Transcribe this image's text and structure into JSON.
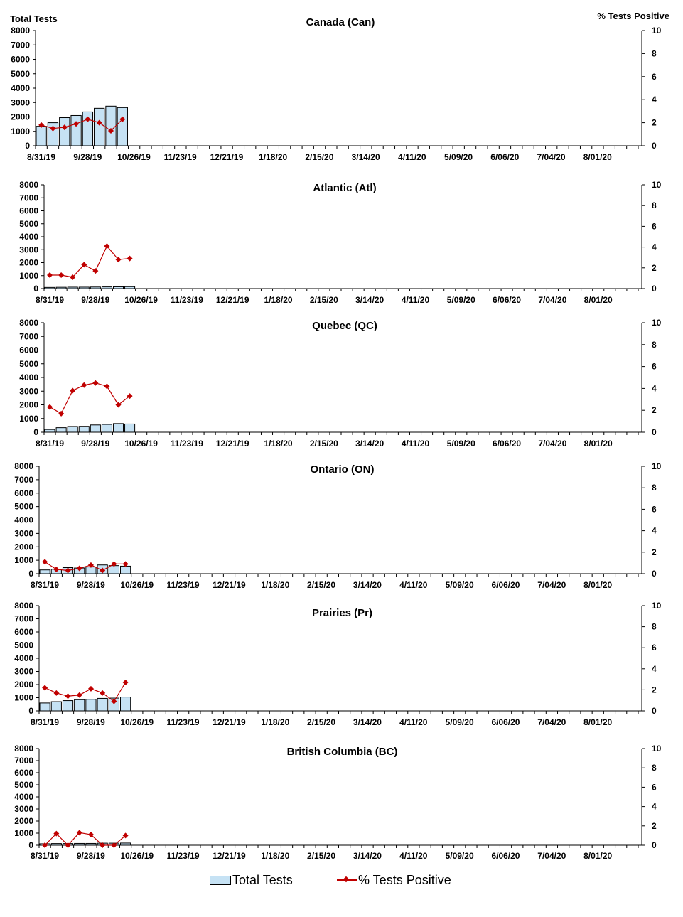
{
  "left_axis_title": "Total Tests",
  "right_axis_title": "% Tests Positive",
  "legend": {
    "bars_label": "Total Tests",
    "line_label": "% Tests Positive"
  },
  "colors": {
    "bar_fill": "#c6e2f4",
    "bar_stroke": "#000000",
    "line": "#c00000",
    "marker": "#c00000"
  },
  "chart_data": [
    {
      "type": "bar+line",
      "title": "Canada (Can)",
      "x_tick_labels": [
        "8/31/19",
        "9/28/19",
        "10/26/19",
        "11/23/19",
        "12/21/19",
        "1/18/20",
        "2/15/20",
        "3/14/20",
        "4/11/20",
        "5/09/20",
        "6/06/20",
        "7/04/20",
        "8/01/20"
      ],
      "ylim_left": [
        0,
        8000
      ],
      "ylim_right": [
        0,
        10
      ],
      "left_ticks": [
        0,
        1000,
        2000,
        3000,
        4000,
        5000,
        6000,
        7000,
        8000
      ],
      "right_ticks": [
        0,
        2,
        4,
        6,
        8,
        10
      ],
      "total_tests": [
        1350,
        1600,
        1950,
        2100,
        2350,
        2600,
        2750,
        2650
      ],
      "pct_positive": [
        1.8,
        1.5,
        1.6,
        1.9,
        2.3,
        2.0,
        1.3,
        2.3
      ]
    },
    {
      "type": "bar+line",
      "title": "Atlantic (Atl)",
      "x_tick_labels": [
        "8/31/19",
        "9/28/19",
        "10/26/19",
        "11/23/19",
        "12/21/19",
        "1/18/20",
        "2/15/20",
        "3/14/20",
        "4/11/20",
        "5/09/20",
        "6/06/20",
        "7/04/20",
        "8/01/20"
      ],
      "ylim_left": [
        0,
        8000
      ],
      "ylim_right": [
        0,
        10
      ],
      "left_ticks": [
        0,
        1000,
        2000,
        3000,
        4000,
        5000,
        6000,
        7000,
        8000
      ],
      "right_ticks": [
        0,
        2,
        4,
        6,
        8,
        10
      ],
      "total_tests": [
        90,
        100,
        110,
        110,
        120,
        130,
        140,
        150
      ],
      "pct_positive": [
        1.3,
        1.3,
        1.1,
        2.3,
        1.7,
        4.1,
        2.8,
        2.9
      ]
    },
    {
      "type": "bar+line",
      "title": "Quebec (QC)",
      "x_tick_labels": [
        "8/31/19",
        "9/28/19",
        "10/26/19",
        "11/23/19",
        "12/21/19",
        "1/18/20",
        "2/15/20",
        "3/14/20",
        "4/11/20",
        "5/09/20",
        "6/06/20",
        "7/04/20",
        "8/01/20"
      ],
      "ylim_left": [
        0,
        8000
      ],
      "ylim_right": [
        0,
        10
      ],
      "left_ticks": [
        0,
        1000,
        2000,
        3000,
        4000,
        5000,
        6000,
        7000,
        8000
      ],
      "right_ticks": [
        0,
        2,
        4,
        6,
        8,
        10
      ],
      "total_tests": [
        200,
        330,
        420,
        430,
        530,
        570,
        630,
        600
      ],
      "pct_positive": [
        2.3,
        1.7,
        3.8,
        4.3,
        4.5,
        4.2,
        2.5,
        3.3
      ]
    },
    {
      "type": "bar+line",
      "title": "Ontario (ON)",
      "x_tick_labels": [
        "8/31/19",
        "9/28/19",
        "10/26/19",
        "11/23/19",
        "12/21/19",
        "1/18/20",
        "2/15/20",
        "3/14/20",
        "4/11/20",
        "5/09/20",
        "6/06/20",
        "7/04/20",
        "8/01/20"
      ],
      "ylim_left": [
        0,
        8000
      ],
      "ylim_right": [
        0,
        10
      ],
      "left_ticks": [
        0,
        1000,
        2000,
        3000,
        4000,
        5000,
        6000,
        7000,
        8000
      ],
      "right_ticks": [
        0,
        2,
        4,
        6,
        8,
        10
      ],
      "total_tests": [
        280,
        330,
        450,
        420,
        500,
        650,
        600,
        560
      ],
      "pct_positive": [
        1.1,
        0.4,
        0.3,
        0.5,
        0.8,
        0.3,
        0.9,
        0.9
      ]
    },
    {
      "type": "bar+line",
      "title": "Prairies (Pr)",
      "x_tick_labels": [
        "8/31/19",
        "9/28/19",
        "10/26/19",
        "11/23/19",
        "12/21/19",
        "1/18/20",
        "2/15/20",
        "3/14/20",
        "4/11/20",
        "5/09/20",
        "6/06/20",
        "7/04/20",
        "8/01/20"
      ],
      "ylim_left": [
        0,
        8000
      ],
      "ylim_right": [
        0,
        10
      ],
      "left_ticks": [
        0,
        1000,
        2000,
        3000,
        4000,
        5000,
        6000,
        7000,
        8000
      ],
      "right_ticks": [
        0,
        2,
        4,
        6,
        8,
        10
      ],
      "total_tests": [
        600,
        700,
        780,
        850,
        880,
        950,
        970,
        1050
      ],
      "pct_positive": [
        2.2,
        1.7,
        1.4,
        1.5,
        2.1,
        1.7,
        0.9,
        2.7
      ]
    },
    {
      "type": "bar+line",
      "title": "British Columbia (BC)",
      "x_tick_labels": [
        "8/31/19",
        "9/28/19",
        "10/26/19",
        "11/23/19",
        "12/21/19",
        "1/18/20",
        "2/15/20",
        "3/14/20",
        "4/11/20",
        "5/09/20",
        "6/06/20",
        "7/04/20",
        "8/01/20"
      ],
      "ylim_left": [
        0,
        8000
      ],
      "ylim_right": [
        0,
        10
      ],
      "left_ticks": [
        0,
        1000,
        2000,
        3000,
        4000,
        5000,
        6000,
        7000,
        8000
      ],
      "right_ticks": [
        0,
        2,
        4,
        6,
        8,
        10
      ],
      "total_tests": [
        120,
        140,
        140,
        150,
        150,
        170,
        170,
        180
      ],
      "pct_positive": [
        0.0,
        1.2,
        0.0,
        1.3,
        1.1,
        0.0,
        0.0,
        1.0
      ]
    }
  ]
}
